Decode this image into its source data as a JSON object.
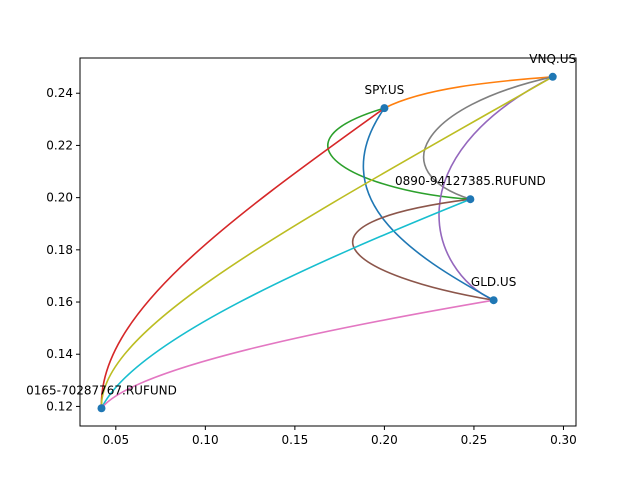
{
  "chart_data": {
    "type": "scatter",
    "title": "",
    "xlabel": "",
    "ylabel": "",
    "xlim": [
      0.03,
      0.307
    ],
    "ylim": [
      0.1125,
      0.2535
    ],
    "x_ticks": [
      0.05,
      0.1,
      0.15,
      0.2,
      0.25,
      0.3
    ],
    "x_tick_labels": [
      "0.05",
      "0.10",
      "0.15",
      "0.20",
      "0.25",
      "0.30"
    ],
    "y_ticks": [
      0.12,
      0.14,
      0.16,
      0.18,
      0.2,
      0.22,
      0.24
    ],
    "y_tick_labels": [
      "0.12",
      "0.14",
      "0.16",
      "0.18",
      "0.20",
      "0.22",
      "0.24"
    ],
    "grid": false,
    "legend": "none",
    "point_color": "#1f77b4",
    "points": [
      {
        "label": "VNQ.US",
        "x": 0.294,
        "y": 0.2463
      },
      {
        "label": "SPY.US",
        "x": 0.2,
        "y": 0.2343
      },
      {
        "label": "0890-94127385.RUFUND",
        "x": 0.248,
        "y": 0.1994
      },
      {
        "label": "GLD.US",
        "x": 0.261,
        "y": 0.1607
      },
      {
        "label": "0165-70287767.RUFUND",
        "x": 0.042,
        "y": 0.1193
      }
    ],
    "curves": [
      {
        "color": "#ff7f0e",
        "path": [
          [
            0.2,
            0.2343
          ],
          [
            0.222,
            0.242
          ],
          [
            0.26,
            0.2445
          ],
          [
            0.294,
            0.2463
          ]
        ]
      },
      {
        "color": "#7f7f7f",
        "path": [
          [
            0.294,
            0.2463
          ],
          [
            0.22,
            0.235
          ],
          [
            0.2,
            0.21
          ],
          [
            0.248,
            0.1994
          ]
        ]
      },
      {
        "color": "#2ca02c",
        "path": [
          [
            0.2,
            0.2343
          ],
          [
            0.13,
            0.22
          ],
          [
            0.19,
            0.202
          ],
          [
            0.248,
            0.1994
          ]
        ]
      },
      {
        "color": "#9467bd",
        "path": [
          [
            0.294,
            0.2463
          ],
          [
            0.205,
            0.215
          ],
          [
            0.225,
            0.172
          ],
          [
            0.261,
            0.1607
          ]
        ]
      },
      {
        "color": "#1f77b4",
        "path": [
          [
            0.2,
            0.2343
          ],
          [
            0.165,
            0.2
          ],
          [
            0.215,
            0.178
          ],
          [
            0.261,
            0.1607
          ]
        ]
      },
      {
        "color": "#8c564b",
        "path": [
          [
            0.248,
            0.1994
          ],
          [
            0.14,
            0.19
          ],
          [
            0.18,
            0.17
          ],
          [
            0.261,
            0.1607
          ]
        ]
      },
      {
        "color": "#d62728",
        "path": [
          [
            0.042,
            0.1193
          ],
          [
            0.04,
            0.155
          ],
          [
            0.11,
            0.19
          ],
          [
            0.2,
            0.2343
          ]
        ]
      },
      {
        "color": "#bcbd22",
        "path": [
          [
            0.042,
            0.1193
          ],
          [
            0.04,
            0.15
          ],
          [
            0.15,
            0.19
          ],
          [
            0.294,
            0.2463
          ]
        ]
      },
      {
        "color": "#17becf",
        "path": [
          [
            0.042,
            0.1193
          ],
          [
            0.06,
            0.145
          ],
          [
            0.16,
            0.175
          ],
          [
            0.248,
            0.1994
          ]
        ]
      },
      {
        "color": "#e377c2",
        "path": [
          [
            0.042,
            0.1193
          ],
          [
            0.06,
            0.135
          ],
          [
            0.17,
            0.15
          ],
          [
            0.261,
            0.1607
          ]
        ]
      }
    ]
  }
}
